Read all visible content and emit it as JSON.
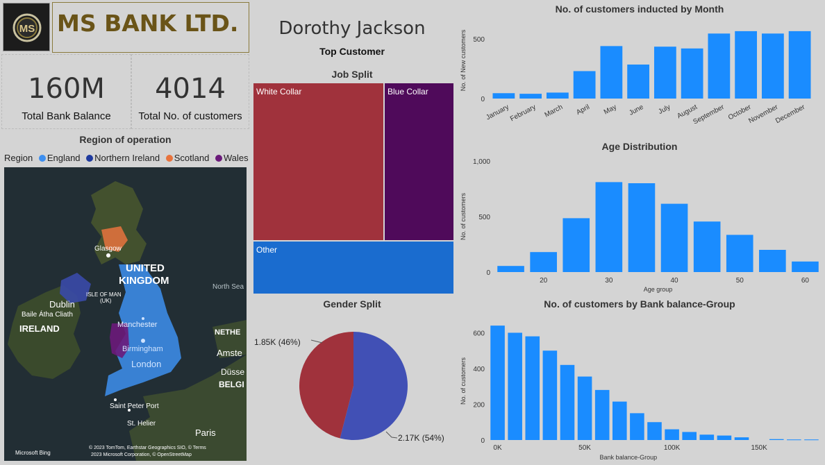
{
  "header": {
    "bank_name": "MS BANK LTD.",
    "logo_text": "MS",
    "top_customer_name": "Dorothy Jackson",
    "top_customer_label": "Top Customer"
  },
  "kpis": {
    "balance_value": "160M",
    "balance_label": "Total Bank Balance",
    "customers_value": "4014",
    "customers_label": "Total No. of customers"
  },
  "map": {
    "title": "Region of operation",
    "legend_title": "Region",
    "regions": [
      {
        "name": "England",
        "color": "#3d8ff0"
      },
      {
        "name": "Northern Ireland",
        "color": "#1f3a9e"
      },
      {
        "name": "Scotland",
        "color": "#e8733d"
      },
      {
        "name": "Wales",
        "color": "#6b1a7a"
      }
    ],
    "labels": {
      "uk1": "UNITED",
      "uk2": "KINGDOM",
      "ireland": "IRELAND",
      "dublin": "Dublin",
      "baile": "Baile Átha Cliath",
      "glasgow": "Glasgow",
      "manchester": "Manchester",
      "birmingham": "Birmingham",
      "london": "London",
      "isle_of_man": "ISLE OF MAN",
      "uk_abbr": "(UK)",
      "north_sea": "North Sea",
      "neth": "NETHE",
      "amster": "Amste",
      "dusse": "Düsse",
      "belg": "BELGI",
      "paris": "Paris",
      "saint_peter": "Saint Peter Port",
      "st_helier": "St. Helier",
      "bing": "Microsoft Bing",
      "copyright1": "© 2023 TomTom, Earthstar Geographics SIO, ©  Terms",
      "copyright2": "2023 Microsoft Corporation, © OpenStreetMap"
    }
  },
  "job_split": {
    "title": "Job Split",
    "tiles": [
      {
        "name": "White Collar",
        "color": "#a0323c"
      },
      {
        "name": "Blue Collar",
        "color": "#4f0a5a"
      },
      {
        "name": "Other",
        "color": "#1a6ccf"
      }
    ]
  },
  "chart_data": [
    {
      "id": "monthly",
      "type": "bar",
      "title": "No. of customers inducted by Month",
      "ylabel": "No. of New customers",
      "xlabel": "",
      "categories": [
        "January",
        "February",
        "March",
        "April",
        "May",
        "June",
        "July",
        "August",
        "September",
        "October",
        "November",
        "December"
      ],
      "values": [
        45,
        40,
        50,
        230,
        440,
        285,
        435,
        420,
        545,
        565,
        545,
        565
      ],
      "yticks": [
        0,
        500
      ],
      "ylim": [
        0,
        640
      ],
      "color": "#1a8cff"
    },
    {
      "id": "age",
      "type": "bar",
      "title": "Age Distribution",
      "ylabel": "No. of customers",
      "xlabel": "Age group",
      "x": [
        15,
        20,
        25,
        30,
        35,
        40,
        45,
        50,
        55,
        60
      ],
      "values": [
        55,
        180,
        485,
        810,
        800,
        615,
        455,
        335,
        200,
        95
      ],
      "xticks": [
        20,
        30,
        40,
        50,
        60
      ],
      "yticks": [
        0,
        500,
        1000
      ],
      "ytick_labels": [
        "0",
        "500",
        "1,000"
      ],
      "ylim": [
        0,
        1000
      ],
      "color": "#1a8cff"
    },
    {
      "id": "gender",
      "type": "pie",
      "title": "Gender Split",
      "slices": [
        {
          "label": "1.85K (46%)",
          "value": 46,
          "color": "#a0323c"
        },
        {
          "label": "2.17K (54%)",
          "value": 54,
          "color": "#4150b5"
        }
      ]
    },
    {
      "id": "balance",
      "type": "bar",
      "title": "No. of customers by Bank balance-Group",
      "ylabel": "No. of customers",
      "xlabel": "Bank balance-Group",
      "x": [
        0,
        10000,
        20000,
        30000,
        40000,
        50000,
        60000,
        70000,
        80000,
        90000,
        100000,
        110000,
        120000,
        130000,
        140000,
        150000,
        160000,
        170000,
        180000
      ],
      "values": [
        640,
        600,
        580,
        500,
        420,
        355,
        280,
        215,
        150,
        100,
        60,
        45,
        30,
        25,
        15,
        0,
        5,
        3,
        3
      ],
      "xticks": [
        0,
        50000,
        100000,
        150000
      ],
      "xtick_labels": [
        "0K",
        "50K",
        "100K",
        "150K"
      ],
      "yticks": [
        0,
        200,
        400,
        600
      ],
      "ylim": [
        0,
        660
      ],
      "color": "#1a8cff"
    }
  ]
}
